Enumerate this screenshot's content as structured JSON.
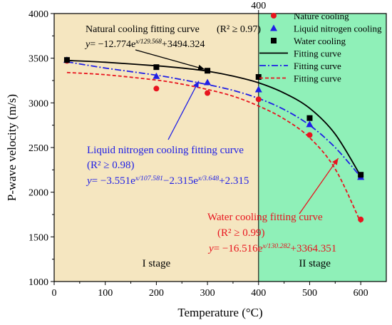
{
  "chart_data": {
    "type": "scatter",
    "xlabel": "Temperature (°C)",
    "ylabel": "P-wave velocity (m/s)",
    "xlim": [
      0,
      650
    ],
    "ylim": [
      1000,
      4000
    ],
    "x_ticks": [
      0,
      100,
      200,
      300,
      400,
      500,
      600
    ],
    "y_ticks": [
      1000,
      1500,
      2000,
      2500,
      3000,
      3500,
      4000
    ],
    "top_tick_label": "400",
    "regions": [
      {
        "label": "I stage",
        "x_range": [
          0,
          400
        ],
        "color": "#f5e6c0"
      },
      {
        "label": "II stage",
        "x_range": [
          400,
          650
        ],
        "color": "#8ff0b8"
      }
    ],
    "series": [
      {
        "name": "Nature cooling",
        "marker": "circle",
        "color": "#e8141e",
        "x": [
          25,
          200,
          300,
          400,
          500,
          600
        ],
        "y": [
          3470,
          3160,
          3110,
          3040,
          2640,
          1695
        ]
      },
      {
        "name": "Liquid nitrogen cooling",
        "marker": "triangle",
        "color": "#1f1fe6",
        "x": [
          25,
          200,
          300,
          400,
          500,
          600
        ],
        "y": [
          3480,
          3300,
          3230,
          3150,
          2760,
          2170
        ]
      },
      {
        "name": "Water cooling",
        "marker": "square",
        "color": "#000000",
        "x": [
          25,
          200,
          300,
          400,
          500,
          600
        ],
        "y": [
          3480,
          3400,
          3360,
          3290,
          2830,
          2195
        ]
      }
    ],
    "fitted_curves": [
      {
        "name": "Fitting curve",
        "style": "solid",
        "color": "#000000",
        "x": [
          25,
          100,
          200,
          250,
          300,
          350,
          400,
          450,
          500,
          550,
          600
        ],
        "y": [
          3475,
          3455,
          3415,
          3390,
          3355,
          3300,
          3225,
          3110,
          2940,
          2650,
          2180
        ]
      },
      {
        "name": "Fitting curve",
        "style": "dashdot",
        "color": "#1f1fe6",
        "x": [
          25,
          100,
          200,
          250,
          300,
          350,
          400,
          450,
          500,
          550,
          600
        ],
        "y": [
          3460,
          3390,
          3310,
          3260,
          3205,
          3140,
          3050,
          2925,
          2750,
          2500,
          2170
        ]
      },
      {
        "name": "Fitting curve",
        "style": "dashed",
        "color": "#e8141e",
        "x": [
          25,
          100,
          200,
          250,
          300,
          350,
          400,
          450,
          500,
          550,
          600
        ],
        "y": [
          3340,
          3315,
          3255,
          3210,
          3150,
          3075,
          2965,
          2820,
          2610,
          2260,
          1660
        ]
      }
    ],
    "legend_position": "top-right",
    "annotations": {
      "natural": {
        "title": "Natural cooling fitting curve",
        "r2": "(R² ≥ 0.97)",
        "equation": "y= −12.774e^{x/129.568}+3494.324",
        "color": "#000000"
      },
      "liquid": {
        "title": "Liquid nitrogen cooling fitting curve",
        "r2": "(R² ≥ 0.98)",
        "equation": "y= −3.551e^{x/107.581}−2.315e^{x/3.648}+2.315",
        "color": "#1f1fe6"
      },
      "water": {
        "title": "Water cooling fitting curve",
        "r2": "(R² ≥ 0.99)",
        "equation": "y= −16.516e^{x/130.282}+3364.351",
        "color": "#e8141e"
      }
    }
  }
}
